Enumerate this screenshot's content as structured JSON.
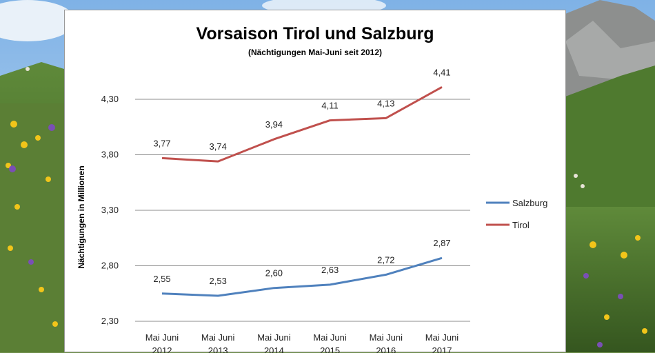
{
  "chart_data": {
    "type": "line",
    "title": "Vorsaison Tirol und Salzburg",
    "subtitle": "(Nächtigungen  Mai-Juni  seit 2012)",
    "ylabel": "Nächtigungen  in Millionen",
    "xlabel": "",
    "categories": [
      [
        "Mai Juni",
        "2012"
      ],
      [
        "Mai Juni",
        "2013"
      ],
      [
        "Mai Juni",
        "2014"
      ],
      [
        "Mai Juni",
        "2015"
      ],
      [
        "Mai Juni",
        "2016"
      ],
      [
        "Mai Juni",
        "2017"
      ]
    ],
    "ylim": [
      2.3,
      4.55
    ],
    "yticks": [
      2.3,
      2.8,
      3.3,
      3.8,
      4.3
    ],
    "ytick_labels": [
      "2,30",
      "2,80",
      "3,30",
      "3,80",
      "4,30"
    ],
    "grid": true,
    "legend_position": "right",
    "series": [
      {
        "name": "Salzburg",
        "color": "#4f81bd",
        "values": [
          2.55,
          2.53,
          2.6,
          2.63,
          2.72,
          2.87
        ],
        "labels": [
          "2,55",
          "2,53",
          "2,60",
          "2,63",
          "2,72",
          "2,87"
        ]
      },
      {
        "name": "Tirol",
        "color": "#c0504d",
        "values": [
          3.77,
          3.74,
          3.94,
          4.11,
          4.13,
          4.41
        ],
        "labels": [
          "3,77",
          "3,74",
          "3,94",
          "4,11",
          "4,13",
          "4,41"
        ]
      }
    ]
  }
}
